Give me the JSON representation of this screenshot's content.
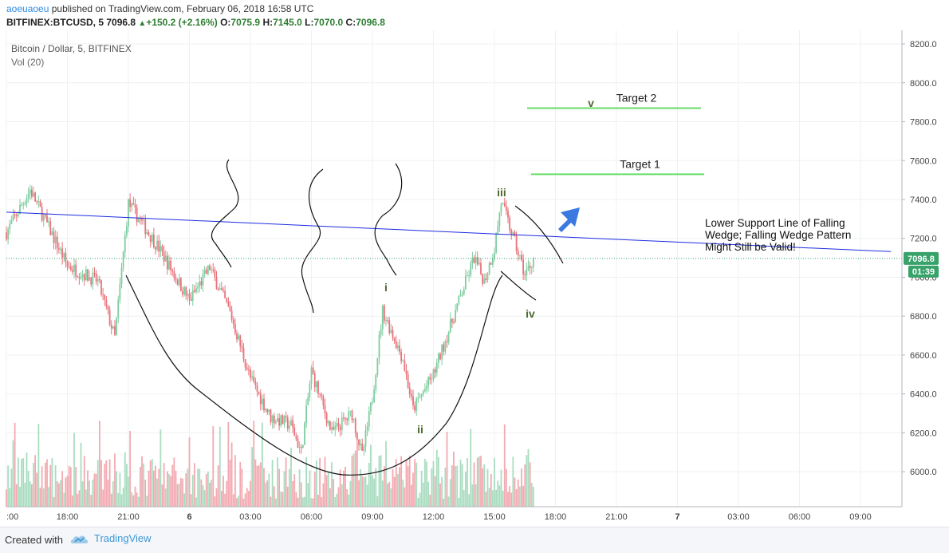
{
  "header": {
    "author": "aoeuaoeu",
    "published": "published on TradingView.com, February 06, 2018 16:58 UTC",
    "symbol": "BITFINEX:BTCUSD, 5",
    "last": "7096.8",
    "change_arrow": "▲",
    "change": "+150.2 (+2.16%)",
    "o_label": "O:",
    "o": "7075.9",
    "h_label": "H:",
    "h": "7145.0",
    "l_label": "L:",
    "l": "7070.0",
    "c_label": "C:",
    "c": "7096.8"
  },
  "pane": {
    "legend_title": "Bitcoin / Dollar, 5, BITFINEX",
    "volume_label": "Vol (20)"
  },
  "annotations": {
    "target1": "Target 1",
    "target2": "Target 2",
    "wave_i": "i",
    "wave_ii": "ii",
    "wave_iii": "iii",
    "wave_iv": "iv",
    "wave_v": "v",
    "note": [
      "Lower Support Line of Falling",
      "Wedge; Falling Wedge Pattern",
      "Might Still be Valid!"
    ]
  },
  "price_badge": "7096.8",
  "countdown_badge": "01:39",
  "footer": {
    "created_with": "Created with",
    "brand": "TradingView"
  },
  "colors": {
    "up": "#7fcca0",
    "down": "#e8727b",
    "vol_up": "#a9dcc0",
    "vol_down": "#f2aab1",
    "support_line": "#1c2be0",
    "target_line": "#66dd66",
    "last_price": "#37a26a",
    "arrow": "#3b78e0",
    "wave_label": "#4c6a2e"
  },
  "chart_data": {
    "type": "candlestick",
    "title": "Bitcoin / Dollar, 5, BITFINEX",
    "x_ticks": [
      ":00",
      "18:00",
      "21:00",
      "6",
      "03:00",
      "06:00",
      "09:00",
      "12:00",
      "15:00",
      "18:00",
      "21:00",
      "7",
      "03:00",
      "06:00",
      "09:00"
    ],
    "y_ticks": [
      "6000.0",
      "6200.0",
      "6400.0",
      "6600.0",
      "6800.0",
      "7000.0",
      "7200.0",
      "7400.0",
      "7600.0",
      "7800.0",
      "8000.0",
      "8200.0"
    ],
    "ylim": [
      5820,
      8270
    ],
    "close_path": [
      {
        "t": "2018-02-05 15:00",
        "price": 7230
      },
      {
        "t": "2018-02-05 16:10",
        "price": 7450
      },
      {
        "t": "2018-02-05 18:00",
        "price": 7060
      },
      {
        "t": "2018-02-05 19:30",
        "price": 6980
      },
      {
        "t": "2018-02-05 20:20",
        "price": 6690
      },
      {
        "t": "2018-02-05 21:00",
        "price": 7380
      },
      {
        "t": "2018-02-05 22:30",
        "price": 7150
      },
      {
        "t": "2018-02-06 00:00",
        "price": 6880
      },
      {
        "t": "2018-02-06 01:00",
        "price": 7050
      },
      {
        "t": "2018-02-06 02:00",
        "price": 6820
      },
      {
        "t": "2018-02-06 03:00",
        "price": 6480
      },
      {
        "t": "2018-02-06 04:00",
        "price": 6280
      },
      {
        "t": "2018-02-06 05:00",
        "price": 6240
      },
      {
        "t": "2018-02-06 05:30",
        "price": 6100
      },
      {
        "t": "2018-02-06 06:00",
        "price": 6520
      },
      {
        "t": "2018-02-06 07:00",
        "price": 6200
      },
      {
        "t": "2018-02-06 08:00",
        "price": 6300
      },
      {
        "t": "2018-02-06 08:30",
        "price": 6080
      },
      {
        "t": "2018-02-06 09:00",
        "price": 6380
      },
      {
        "t": "2018-02-06 09:30",
        "price": 6830
      },
      {
        "t": "2018-02-06 10:30",
        "price": 6580
      },
      {
        "t": "2018-02-06 11:00",
        "price": 6320
      },
      {
        "t": "2018-02-06 12:00",
        "price": 6500
      },
      {
        "t": "2018-02-06 13:00",
        "price": 6800
      },
      {
        "t": "2018-02-06 14:00",
        "price": 7100
      },
      {
        "t": "2018-02-06 14:30",
        "price": 6980
      },
      {
        "t": "2018-02-06 15:00",
        "price": 7150
      },
      {
        "t": "2018-02-06 15:20",
        "price": 7390
      },
      {
        "t": "2018-02-06 16:00",
        "price": 7180
      },
      {
        "t": "2018-02-06 16:30",
        "price": 7010
      },
      {
        "t": "2018-02-06 16:55",
        "price": 7096.8
      }
    ],
    "last_price": 7096.8,
    "support_line": {
      "from": {
        "t": "2018-02-05 15:00",
        "price": 7335
      },
      "to": {
        "t": "2018-02-07 10:30",
        "price": 7132
      }
    },
    "targets": [
      {
        "name": "Target 1",
        "price": 7530
      },
      {
        "name": "Target 2",
        "price": 7870
      }
    ],
    "grid": true,
    "legend": "top-left"
  }
}
